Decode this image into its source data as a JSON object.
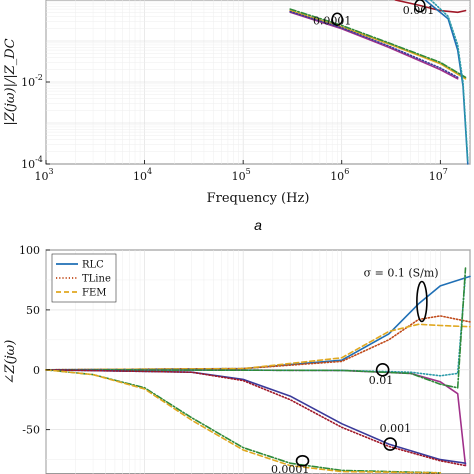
{
  "chart_data": [
    {
      "type": "line",
      "xscale": "log",
      "yscale": "log",
      "xlabel": "Frequency (Hz)",
      "ylabel": "|Z(jω)|/|Z_DC",
      "xlim": [
        1000,
        20000000
      ],
      "ylim": [
        0.0001,
        1
      ],
      "x_ticks": [
        {
          "value": 1000,
          "base": "10",
          "exp": "3"
        },
        {
          "value": 10000,
          "base": "10",
          "exp": "4"
        },
        {
          "value": 100000,
          "base": "10",
          "exp": "5"
        },
        {
          "value": 1000000,
          "base": "10",
          "exp": "6"
        },
        {
          "value": 10000000,
          "base": "10",
          "exp": "7"
        }
      ],
      "y_ticks": [
        {
          "value": 0.0001,
          "base": "10",
          "exp": "-4"
        },
        {
          "value": 0.01,
          "base": "10",
          "exp": "-2"
        }
      ],
      "grid": true,
      "panel_label": "a",
      "series": [
        {
          "style": "solid",
          "color": "#e0a820",
          "x": [
            300000,
            1000000,
            3000000,
            10000000,
            18000000
          ],
          "y": [
            0.55,
            0.22,
            0.085,
            0.028,
            0.012
          ]
        },
        {
          "style": "dashdot",
          "color": "#2f8a3a",
          "x": [
            300000,
            1000000,
            3000000,
            10000000,
            18000000
          ],
          "y": [
            0.6,
            0.24,
            0.09,
            0.03,
            0.013
          ]
        },
        {
          "style": "solid",
          "color": "#a0308a",
          "x": [
            300000,
            1000000,
            3000000,
            10000000,
            15000000
          ],
          "y": [
            0.5,
            0.2,
            0.07,
            0.02,
            0.012
          ]
        },
        {
          "style": "dotted",
          "color": "#3a3a9a",
          "x": [
            300000,
            1000000,
            3000000,
            10000000,
            15000000
          ],
          "y": [
            0.52,
            0.21,
            0.075,
            0.022,
            0.013
          ]
        },
        {
          "style": "solid",
          "color": "#a01828",
          "x": [
            3500000,
            6000000,
            10000000,
            15000000,
            18000000
          ],
          "y": [
            1,
            0.75,
            0.55,
            0.5,
            0.55
          ]
        },
        {
          "style": "solid",
          "color": "#1f6fb5",
          "x": [
            7000000,
            12000000,
            15000000,
            17000000,
            19000000
          ],
          "y": [
            1,
            0.35,
            0.06,
            0.008,
            0.0001
          ]
        },
        {
          "style": "dotted",
          "color": "#2a9aa8",
          "x": [
            8000000,
            12000000,
            15000000,
            17000000,
            19000000
          ],
          "y": [
            1,
            0.4,
            0.08,
            0.01,
            0.00012
          ]
        }
      ],
      "annotations": [
        {
          "text": "0.0001",
          "x": 800000,
          "y": 0.25
        },
        {
          "text": "0.001",
          "x": 6000000,
          "y": 0.45
        }
      ]
    },
    {
      "type": "line",
      "xscale": "log",
      "xlim": [
        1000,
        20000000
      ],
      "ylim": [
        -87,
        100
      ],
      "ylabel": "∠Z(jω)",
      "y_ticks": [
        100,
        50,
        0,
        -50
      ],
      "grid": true,
      "legend": {
        "placement": "top-left",
        "entries": [
          {
            "label": "RLC",
            "style": "solid",
            "color": "#1f6fb5"
          },
          {
            "label": "TLine",
            "style": "dotted",
            "color": "#c04a1a"
          },
          {
            "label": "FEM",
            "style": "dashed",
            "color": "#e0a820"
          }
        ]
      },
      "series": [
        {
          "style": "solid",
          "color": "#1f6fb5",
          "x": [
            1000,
            100000,
            1000000,
            3000000,
            6000000,
            10000000,
            20000000
          ],
          "y": [
            0,
            1,
            8,
            30,
            55,
            70,
            78
          ]
        },
        {
          "style": "dotted",
          "color": "#c04a1a",
          "x": [
            1000,
            100000,
            1000000,
            3000000,
            6000000,
            10000000,
            20000000
          ],
          "y": [
            0,
            1,
            7,
            25,
            42,
            45,
            40
          ]
        },
        {
          "style": "dashed",
          "color": "#e0a820",
          "x": [
            1000,
            100000,
            1000000,
            3000000,
            6000000,
            10000000,
            20000000
          ],
          "y": [
            0,
            1,
            10,
            32,
            38,
            37,
            36
          ]
        },
        {
          "style": "solid",
          "color": "#a0308a",
          "x": [
            1000,
            1000000,
            5000000,
            10000000,
            15000000,
            18000000
          ],
          "y": [
            0,
            -0.5,
            -3,
            -10,
            -20,
            -80
          ]
        },
        {
          "style": "dotted",
          "color": "#2a9aa8",
          "x": [
            1000,
            1000000,
            5000000,
            10000000,
            15000000,
            18000000
          ],
          "y": [
            0,
            -0.5,
            -2,
            -5,
            -3,
            80
          ]
        },
        {
          "style": "dashdot",
          "color": "#2f8a3a",
          "x": [
            1000,
            1000000,
            5000000,
            10000000,
            15000000,
            18000000
          ],
          "y": [
            0,
            -0.5,
            -3,
            -12,
            -15,
            85
          ]
        },
        {
          "style": "solid",
          "color": "#3a3a9a",
          "x": [
            1000,
            30000,
            100000,
            300000,
            1000000,
            3000000,
            10000000,
            18000000
          ],
          "y": [
            0,
            -2,
            -8,
            -22,
            -45,
            -62,
            -75,
            -78
          ]
        },
        {
          "style": "dotted",
          "color": "#a01828",
          "x": [
            1000,
            30000,
            100000,
            300000,
            1000000,
            3000000,
            10000000,
            18000000
          ],
          "y": [
            0,
            -2,
            -9,
            -25,
            -48,
            -64,
            -76,
            -80
          ]
        },
        {
          "style": "dashdot",
          "color": "#2f8a3a",
          "x": [
            1000,
            3000,
            10000,
            30000,
            100000,
            300000,
            1000000,
            10000000
          ],
          "y": [
            0,
            -4,
            -15,
            -40,
            -65,
            -78,
            -84,
            -86
          ]
        },
        {
          "style": "dashed",
          "color": "#e0a820",
          "x": [
            1000,
            3000,
            10000,
            30000,
            100000,
            300000,
            1000000,
            10000000
          ],
          "y": [
            0,
            -4,
            -16,
            -42,
            -67,
            -80,
            -85,
            -86
          ]
        }
      ],
      "annotations": [
        {
          "text": "σ = 0.1 (S/m)",
          "x": 4000000,
          "y": 78
        },
        {
          "text": "0.01",
          "x": 2500000,
          "y": -12
        },
        {
          "text": "0.001",
          "x": 3500000,
          "y": -52
        },
        {
          "text": "0.0001",
          "x": 300000,
          "y": -86
        }
      ]
    }
  ]
}
